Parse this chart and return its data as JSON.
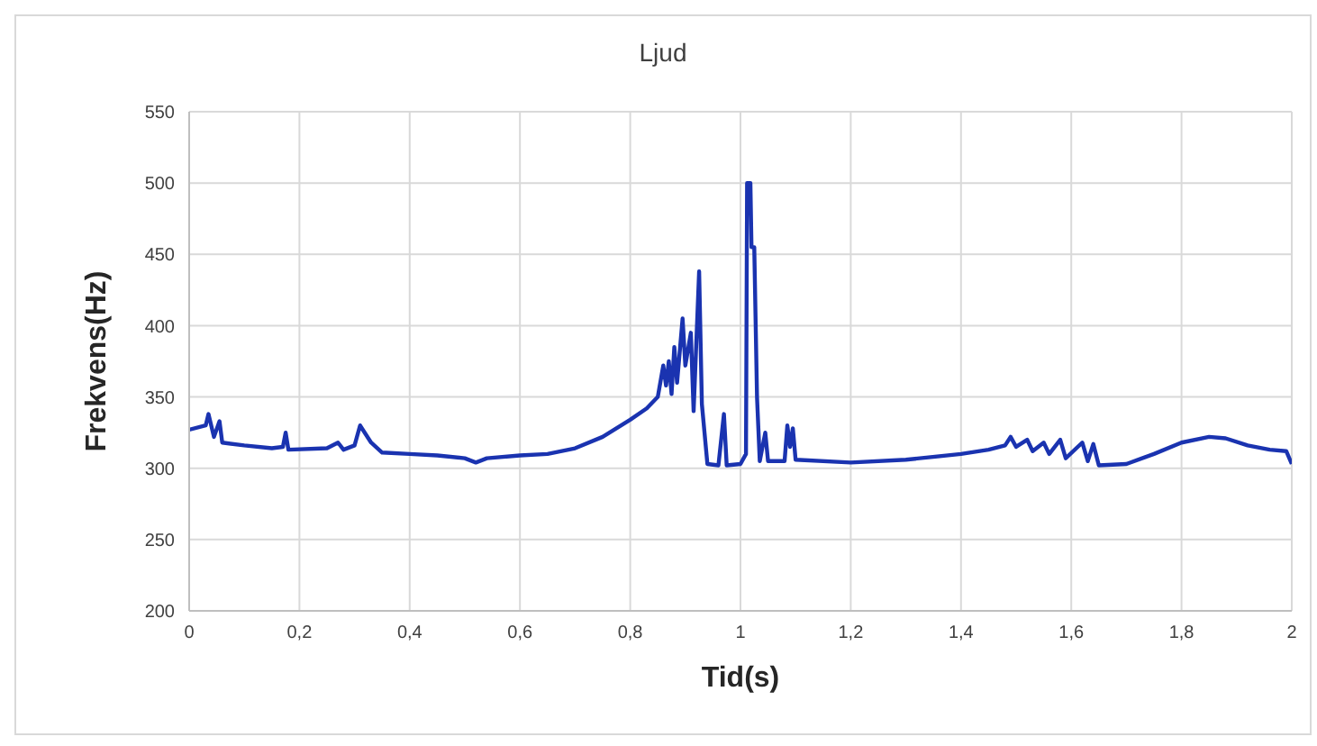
{
  "chart_data": {
    "type": "line",
    "title": "Ljud",
    "xlabel": "Tid(s)",
    "ylabel": "Frekvens(Hz)",
    "xlim": [
      0,
      2
    ],
    "xticks": [
      0,
      {
        "value": 0.2,
        "label": "0,2"
      },
      {
        "value": 0.4,
        "label": "0,4"
      },
      {
        "value": 0.6,
        "label": "0,6"
      },
      {
        "value": 0.8,
        "label": "0,8"
      },
      1,
      {
        "value": 1.2,
        "label": "1,2"
      },
      {
        "value": 1.4,
        "label": "1,4"
      },
      {
        "value": 1.6,
        "label": "1,6"
      },
      {
        "value": 1.8,
        "label": "1,8"
      },
      2
    ],
    "ylim": [
      200,
      550
    ],
    "yticks": [
      200,
      250,
      300,
      350,
      400,
      450,
      500,
      550
    ],
    "grid": true,
    "marker": "none",
    "line_style": "solid",
    "series": [
      {
        "color": "#1a33b0",
        "x": [
          0,
          0.03,
          0.035,
          0.045,
          0.055,
          0.06,
          0.1,
          0.15,
          0.17,
          0.175,
          0.18,
          0.25,
          0.27,
          0.28,
          0.3,
          0.31,
          0.33,
          0.35,
          0.4,
          0.45,
          0.5,
          0.52,
          0.54,
          0.6,
          0.65,
          0.7,
          0.75,
          0.8,
          0.83,
          0.85,
          0.86,
          0.865,
          0.87,
          0.875,
          0.88,
          0.885,
          0.895,
          0.9,
          0.91,
          0.915,
          0.925,
          0.93,
          0.94,
          0.96,
          0.97,
          0.975,
          1.0,
          1.01,
          1.012,
          1.018,
          1.02,
          1.025,
          1.03,
          1.035,
          1.045,
          1.05,
          1.08,
          1.085,
          1.09,
          1.095,
          1.1,
          1.2,
          1.3,
          1.4,
          1.45,
          1.48,
          1.49,
          1.5,
          1.52,
          1.53,
          1.55,
          1.56,
          1.58,
          1.59,
          1.62,
          1.63,
          1.64,
          1.65,
          1.7,
          1.75,
          1.8,
          1.85,
          1.88,
          1.92,
          1.96,
          1.99,
          2.0
        ],
        "values": [
          327,
          330,
          338,
          322,
          333,
          318,
          316,
          314,
          315,
          325,
          313,
          314,
          318,
          313,
          316,
          330,
          318,
          311,
          310,
          309,
          307,
          304,
          307,
          309,
          310,
          314,
          322,
          334,
          342,
          350,
          372,
          358,
          375,
          352,
          385,
          360,
          405,
          372,
          395,
          340,
          438,
          345,
          303,
          302,
          338,
          302,
          303,
          310,
          500,
          500,
          455,
          455,
          350,
          305,
          325,
          305,
          305,
          330,
          315,
          328,
          306,
          304,
          306,
          310,
          313,
          316,
          322,
          315,
          320,
          312,
          318,
          310,
          320,
          307,
          318,
          305,
          317,
          302,
          303,
          310,
          318,
          322,
          321,
          316,
          313,
          312,
          303
        ]
      }
    ]
  }
}
